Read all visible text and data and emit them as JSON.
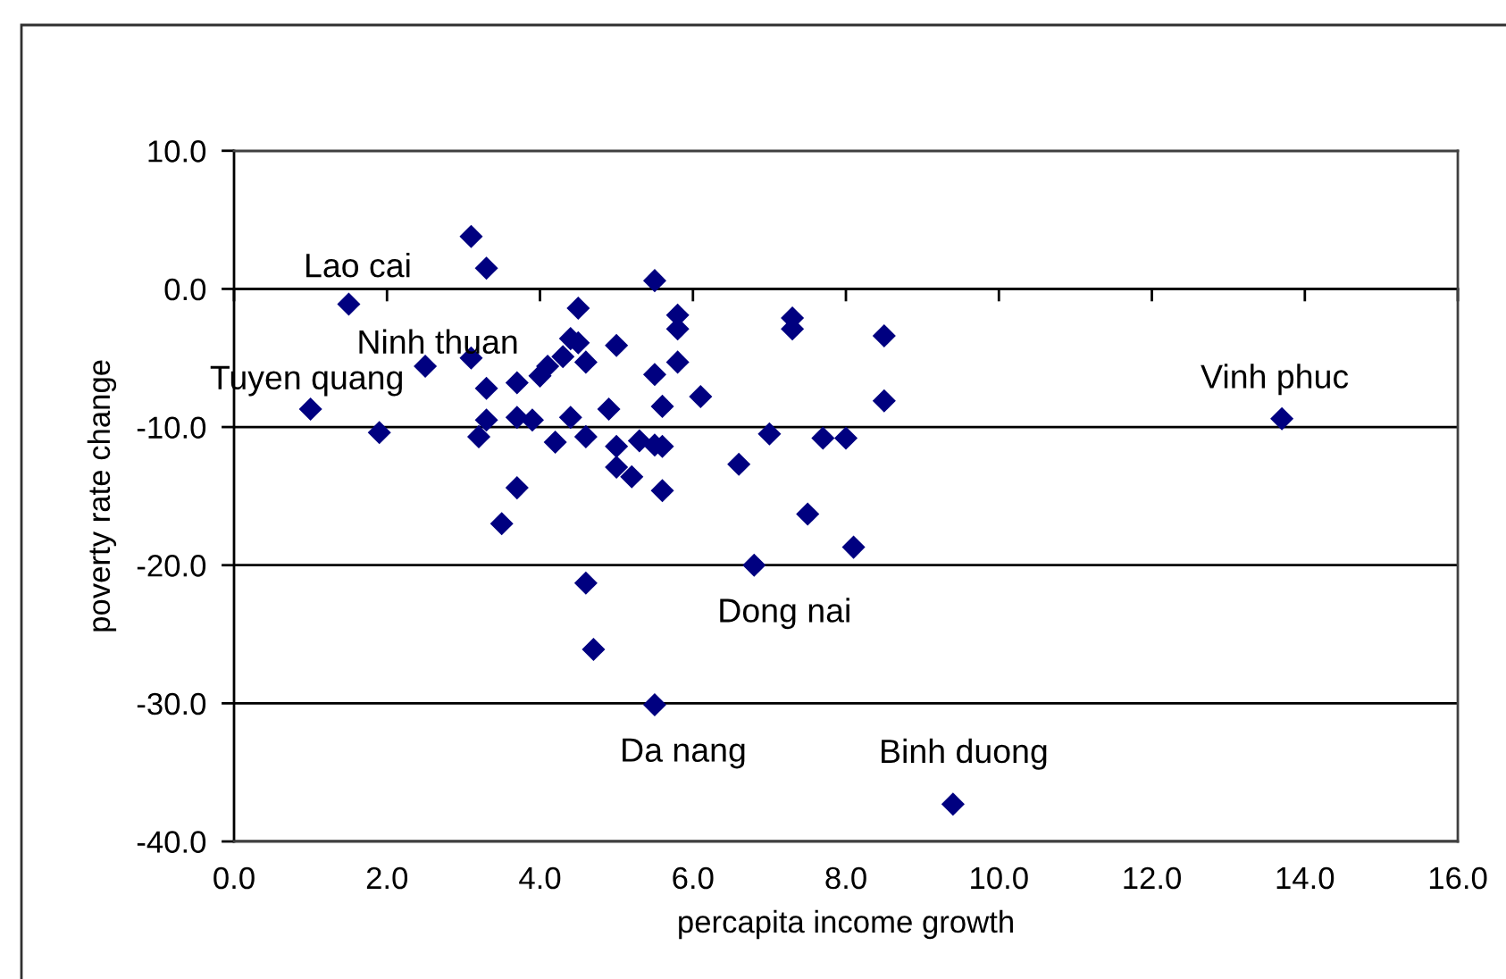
{
  "chart_data": {
    "type": "scatter",
    "xlabel": "percapita income growth",
    "ylabel": "poverty rate change",
    "x": [
      1.0,
      1.5,
      1.9,
      2.5,
      3.1,
      3.3,
      3.1,
      3.3,
      3.3,
      3.2,
      3.7,
      3.7,
      3.9,
      3.7,
      3.5,
      4.0,
      4.1,
      4.3,
      4.2,
      4.4,
      4.4,
      4.5,
      4.5,
      4.6,
      4.6,
      4.9,
      5.0,
      5.0,
      5.0,
      5.2,
      5.3,
      5.5,
      5.5,
      5.5,
      5.6,
      5.6,
      5.6,
      5.8,
      5.8,
      5.8,
      6.1,
      6.6,
      7.0,
      7.3,
      7.3,
      7.5,
      7.7,
      8.0,
      8.1,
      8.5,
      8.5,
      4.6,
      4.7,
      5.5,
      6.8,
      9.4,
      13.7
    ],
    "values": [
      -8.7,
      -1.1,
      -10.4,
      -5.6,
      3.8,
      1.5,
      -5.0,
      -7.2,
      -9.5,
      -10.7,
      -6.8,
      -9.3,
      -9.5,
      -14.4,
      -17.0,
      -6.3,
      -5.6,
      -4.9,
      -11.1,
      -9.3,
      -3.6,
      -3.9,
      -1.4,
      -5.3,
      -10.7,
      -8.7,
      -4.1,
      -12.9,
      -11.4,
      -13.6,
      -11.0,
      -6.2,
      0.6,
      -11.3,
      -11.4,
      -14.6,
      -8.5,
      -5.3,
      -1.9,
      -2.9,
      -7.8,
      -12.7,
      -10.5,
      -2.1,
      -2.9,
      -16.3,
      -10.8,
      -10.8,
      -18.7,
      -3.4,
      -8.1,
      -21.3,
      -26.1,
      -30.1,
      -20.0,
      -37.3,
      -9.4
    ],
    "color": "#000080",
    "marker": "diamond",
    "xlim": [
      0,
      16
    ],
    "xticks": [
      {
        "value": 0,
        "label": "0.0"
      },
      {
        "value": 2,
        "label": "2.0"
      },
      {
        "value": 4,
        "label": "4.0"
      },
      {
        "value": 6,
        "label": "6.0"
      },
      {
        "value": 8,
        "label": "8.0"
      },
      {
        "value": 10,
        "label": "10.0"
      },
      {
        "value": 12,
        "label": "12.0"
      },
      {
        "value": 14,
        "label": "14.0"
      },
      {
        "value": 16,
        "label": "16.0"
      }
    ],
    "ylim": [
      -40,
      10
    ],
    "yticks": [
      {
        "value": 10,
        "label": "10.0"
      },
      {
        "value": 0,
        "label": "0.0"
      },
      {
        "value": -10,
        "label": "-10.0"
      },
      {
        "value": -20,
        "label": "-20.0"
      },
      {
        "value": -30,
        "label": "-30.0"
      },
      {
        "value": -40,
        "label": "-40.0"
      }
    ],
    "grid": "y",
    "annotations": [
      {
        "text": "Lao cai",
        "x": 1.5,
        "y": -1.1
      },
      {
        "text": "Ninh thuan",
        "x": 2.5,
        "y": -5.6
      },
      {
        "text": "Tuyen quang",
        "x": 1.0,
        "y": -8.7
      },
      {
        "text": "Vinh phuc",
        "x": 13.7,
        "y": -9.4
      },
      {
        "text": "Dong nai",
        "x": 6.8,
        "y": -20.0
      },
      {
        "text": "Da nang",
        "x": 5.5,
        "y": -30.1
      },
      {
        "text": "Binh duong",
        "x": 9.4,
        "y": -37.3
      }
    ]
  }
}
